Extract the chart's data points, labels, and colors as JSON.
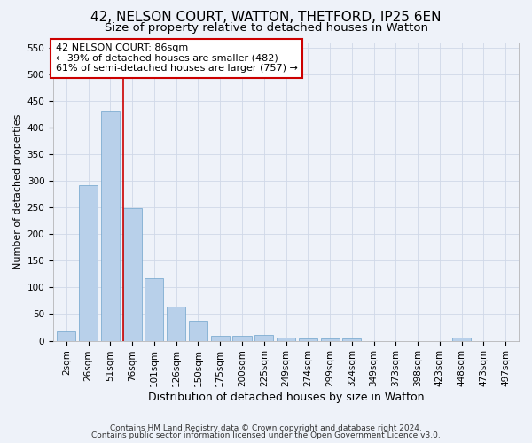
{
  "title": "42, NELSON COURT, WATTON, THETFORD, IP25 6EN",
  "subtitle": "Size of property relative to detached houses in Watton",
  "xlabel": "Distribution of detached houses by size in Watton",
  "ylabel": "Number of detached properties",
  "categories": [
    "2sqm",
    "26sqm",
    "51sqm",
    "76sqm",
    "101sqm",
    "126sqm",
    "150sqm",
    "175sqm",
    "200sqm",
    "225sqm",
    "249sqm",
    "274sqm",
    "299sqm",
    "324sqm",
    "349sqm",
    "373sqm",
    "398sqm",
    "423sqm",
    "448sqm",
    "473sqm",
    "497sqm"
  ],
  "values": [
    17,
    291,
    432,
    248,
    117,
    64,
    37,
    10,
    10,
    11,
    6,
    4,
    4,
    4,
    0,
    0,
    0,
    0,
    6,
    0,
    0
  ],
  "bar_color": "#b8d0ea",
  "bar_edge_color": "#6ea3cb",
  "vline_color": "#cc0000",
  "vline_x": 2.575,
  "annotation_text": "42 NELSON COURT: 86sqm\n← 39% of detached houses are smaller (482)\n61% of semi-detached houses are larger (757) →",
  "annotation_box_facecolor": "#ffffff",
  "annotation_box_edgecolor": "#cc0000",
  "ylim": [
    0,
    560
  ],
  "yticks": [
    0,
    50,
    100,
    150,
    200,
    250,
    300,
    350,
    400,
    450,
    500,
    550
  ],
  "footer_line1": "Contains HM Land Registry data © Crown copyright and database right 2024.",
  "footer_line2": "Contains public sector information licensed under the Open Government Licence v3.0.",
  "title_fontsize": 11,
  "subtitle_fontsize": 9.5,
  "xlabel_fontsize": 9,
  "ylabel_fontsize": 8,
  "tick_fontsize": 7.5,
  "annotation_fontsize": 8,
  "footer_fontsize": 6.5,
  "background_color": "#eef2f9",
  "grid_color": "#d0d8e8"
}
